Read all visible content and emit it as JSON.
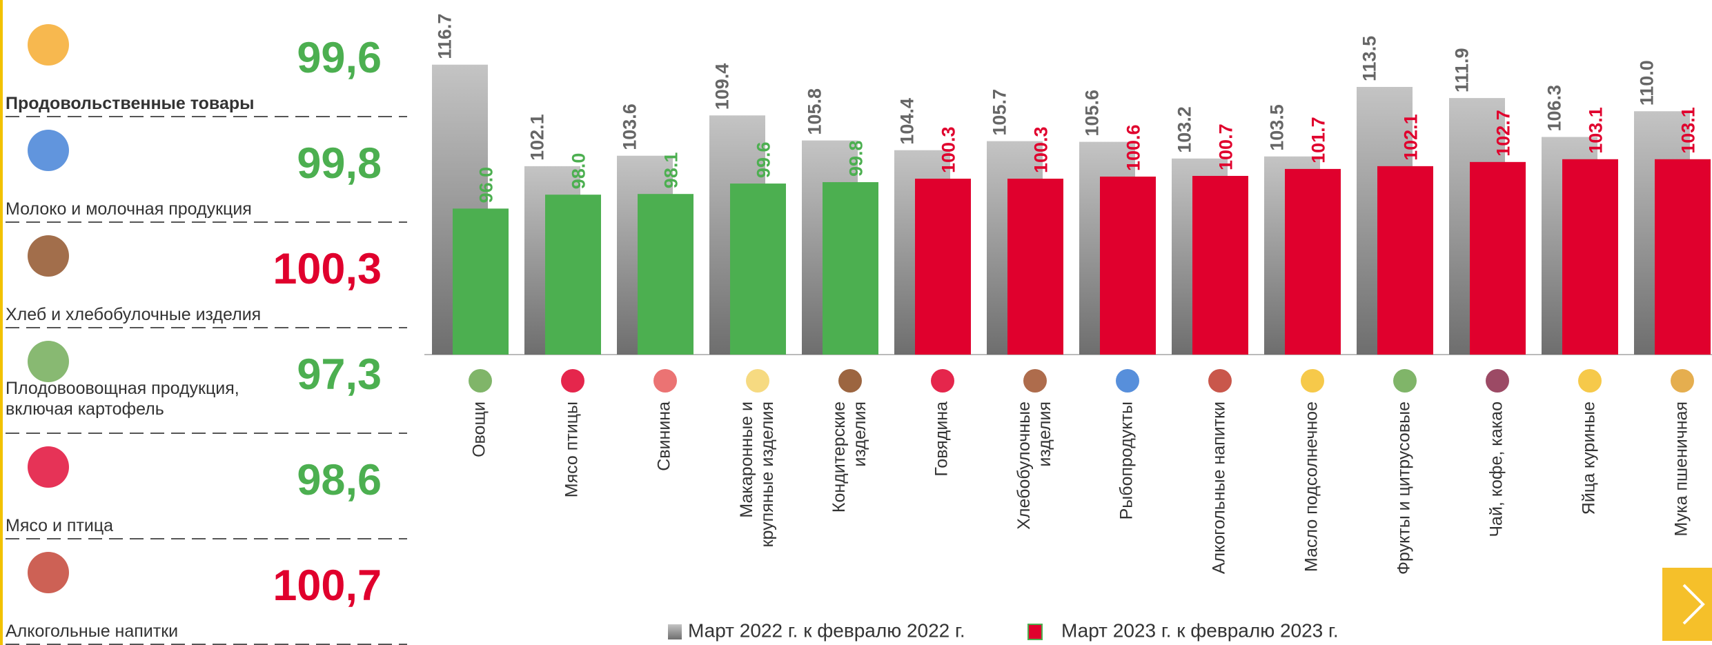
{
  "summary": [
    {
      "name": "Продовольственные товары",
      "value": "99,6",
      "color": "#4caf50",
      "bold": true
    },
    {
      "name": "Молоко и молочная продукция",
      "value": "99,8",
      "color": "#4caf50"
    },
    {
      "name": "Хлеб и хлебобулочные изделия",
      "value": "100,3",
      "color": "#e0002d"
    },
    {
      "name": "Плодовоовощная продукция,\nвключая картофель",
      "value": "97,3",
      "color": "#4caf50"
    },
    {
      "name": "Мясо и птица",
      "value": "98,6",
      "color": "#4caf50"
    },
    {
      "name": "Алкогольные напитки",
      "value": "100,7",
      "color": "#e0002d"
    }
  ],
  "chart_data": {
    "type": "bar",
    "categories": [
      "Овощи",
      "Мясо птицы",
      "Свинина",
      "Макаронные и\nкрупяные изделия",
      "Кондитерские\nизделия",
      "Говядина",
      "Хлебобулочные\nизделия",
      "Рыбопродукты",
      "Алкогольные напитки",
      "Масло подсолнечное",
      "Фрукты и цитрусовые",
      "Чай, кофе, какао",
      "Яйца куриные",
      "Мука пшеничная"
    ],
    "ylim": [
      75,
      126
    ],
    "series": [
      {
        "name": "Март 2022 г. к февралю 2022 г.",
        "color": "#9a9a9a",
        "values": [
          116.7,
          102.1,
          103.6,
          109.4,
          105.8,
          104.4,
          105.7,
          105.6,
          103.2,
          103.5,
          113.5,
          111.9,
          106.3,
          110.0
        ],
        "value_labels": [
          "116.7",
          "102.1",
          "103.6",
          "109.4",
          "105.8",
          "104.4",
          "105.7",
          "105.6",
          "103.2",
          "103.5",
          "113.5",
          "111.9",
          "106.3",
          "110.0"
        ]
      },
      {
        "name": "Март 2023 г. к февралю 2023 г.",
        "color": "#e0002d",
        "colors": [
          "#4caf50",
          "#4caf50",
          "#4caf50",
          "#4caf50",
          "#4caf50",
          "#e0002d",
          "#e0002d",
          "#e0002d",
          "#e0002d",
          "#e0002d",
          "#e0002d",
          "#e0002d",
          "#e0002d",
          "#e0002d"
        ],
        "values": [
          96.0,
          98.0,
          98.1,
          99.6,
          99.8,
          100.3,
          100.3,
          100.6,
          100.7,
          101.7,
          102.1,
          102.7,
          103.1,
          103.1
        ],
        "value_labels": [
          "96.0",
          "98.0",
          "98.1",
          "99.6",
          "99.8",
          "100.3",
          "100.3",
          "100.6",
          "100.7",
          "101.7",
          "102.1",
          "102.7",
          "103.1",
          "103.1"
        ]
      }
    ]
  }
}
